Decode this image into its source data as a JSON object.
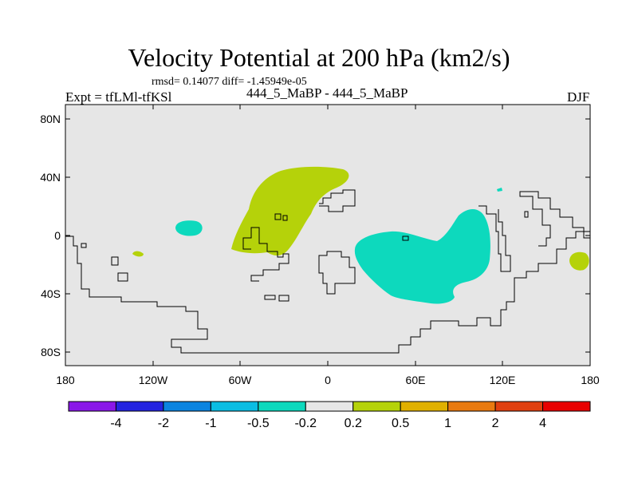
{
  "title": "Velocity Potential at 200 hPa (km2/s)",
  "stats_line": "rmsd= 0.14077 diff= -1.45949e-05",
  "experiment": "Expt = tfLMl-tfKSl",
  "cases": "444_5_MaBP - 444_5_MaBP",
  "season": "DJF",
  "colors": {
    "background": "#e6e6e6",
    "positive_0_2_0_5": "#b5d20a",
    "negative_0_5_0_2": "#0dd9bd",
    "coastline": "#000000"
  },
  "map": {
    "lon_range": [
      -180,
      180
    ],
    "lat_range": [
      -90,
      90
    ],
    "x_tick_labels": [
      "180",
      "120W",
      "60W",
      "0",
      "60E",
      "120E",
      "180"
    ],
    "y_tick_labels": [
      "80N",
      "40N",
      "0",
      "40S",
      "80S"
    ]
  },
  "colorbar": {
    "colors": [
      "#8a17e8",
      "#2424e0",
      "#0b84e0",
      "#0bbde3",
      "#0dd9bd",
      "#e6e6e6",
      "#b5d20a",
      "#e0b000",
      "#e87a10",
      "#e04010",
      "#e80000"
    ],
    "labels": [
      "-4",
      "-2",
      "-1",
      "-0.5",
      "-0.2",
      "0.2",
      "0.5",
      "1",
      "2",
      "4"
    ]
  }
}
